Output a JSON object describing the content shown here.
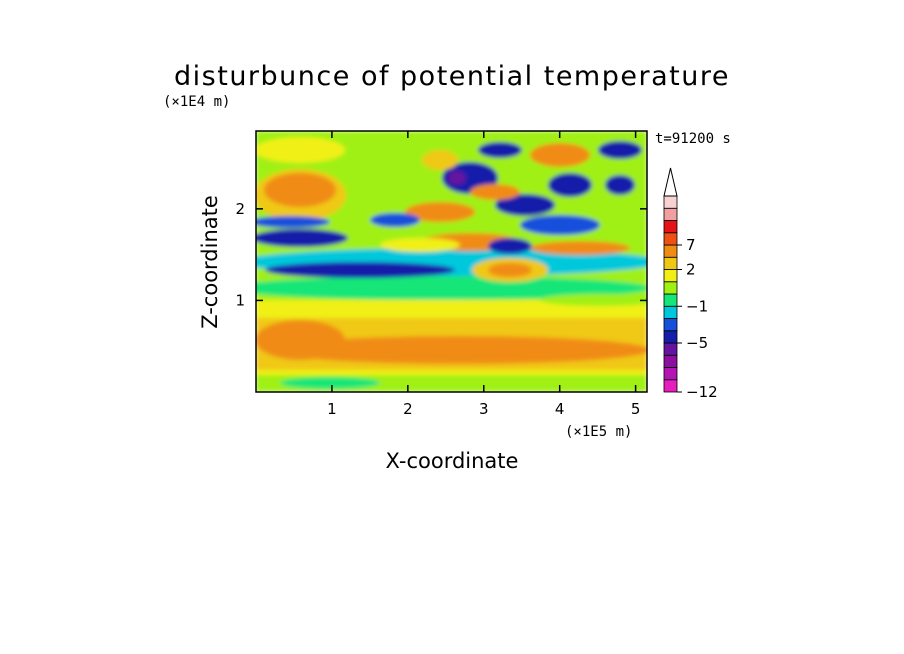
{
  "chart_data": {
    "type": "heatmap",
    "title": "disturbunce of potential temperature",
    "xlabel": "X-coordinate",
    "ylabel": "Z-coordinate",
    "x_unit": "(×1E5 m)",
    "y_unit": "(×1E4 m)",
    "time_label": "t=91200 s",
    "xlim": [
      0,
      5.15
    ],
    "ylim": [
      0,
      2.85
    ],
    "x_ticks": [
      1,
      2,
      3,
      4,
      5
    ],
    "y_ticks": [
      1,
      2
    ],
    "colorbar": {
      "levels_bottom_up": [
        -12,
        -10,
        -8,
        -6,
        -5,
        -3,
        -1,
        0,
        1,
        2,
        3,
        5,
        7,
        9,
        11
      ],
      "colors_bottom_up": [
        "#e61ebe",
        "#b414b4",
        "#8c0fa0",
        "#6414a0",
        "#141eaa",
        "#1450dc",
        "#00c8dc",
        "#14e678",
        "#a0f014",
        "#f0f014",
        "#f0c814",
        "#f08c14",
        "#f05014",
        "#e61414",
        "#f0a0a0",
        "#f8d2d2"
      ],
      "tick_labels": [
        "7",
        "2",
        "−1",
        "−5",
        "−12"
      ]
    },
    "field_description": "Wave-like potential temperature perturbations; strong alternating positive/negative bands above z≈1.3E4 m, weak positive (yellow/orange) layers below z≈1.1E4 m, green near-zero band between."
  }
}
